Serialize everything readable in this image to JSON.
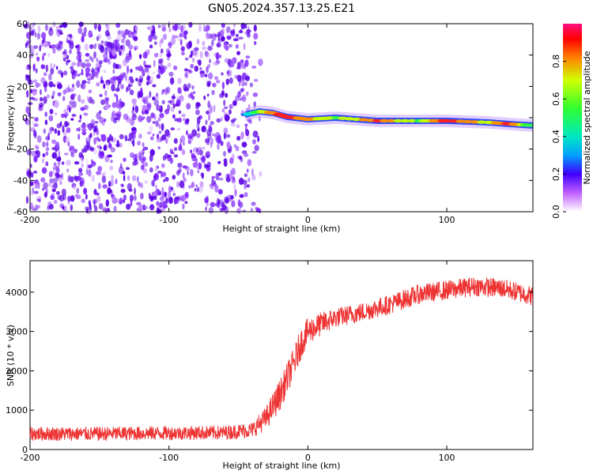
{
  "title": "GN05.2024.357.13.25.E21",
  "chart_data": [
    {
      "type": "heatmap",
      "xlabel": "Height of straight line (km)",
      "ylabel": "Frequency (Hz)",
      "xlim": [
        -200,
        162
      ],
      "ylim": [
        -60,
        60
      ],
      "xticks": [
        -200,
        -100,
        0,
        100
      ],
      "yticks": [
        -60,
        -40,
        -20,
        0,
        20,
        40,
        60
      ],
      "colorbar": {
        "label": "Normalized spectral amplitude",
        "range": [
          0,
          1
        ],
        "ticks": [
          "0.0",
          "0.2",
          "0.4",
          "0.6",
          "0.8"
        ],
        "tick_values": [
          0.0,
          0.2,
          0.4,
          0.6,
          0.8
        ]
      },
      "noise_region": {
        "x_start": -200,
        "x_end": -42,
        "freq_range": [
          -60,
          60
        ]
      },
      "signal_track": [
        {
          "x": -45,
          "freq": 2,
          "amp": 0.3
        },
        {
          "x": -35,
          "freq": 4,
          "amp": 0.6
        },
        {
          "x": -25,
          "freq": 3,
          "amp": 0.85
        },
        {
          "x": -15,
          "freq": 0.5,
          "amp": 0.95
        },
        {
          "x": 0,
          "freq": -1,
          "amp": 0.8
        },
        {
          "x": 20,
          "freq": 0,
          "amp": 0.6
        },
        {
          "x": 50,
          "freq": -2,
          "amp": 0.9
        },
        {
          "x": 80,
          "freq": -2,
          "amp": 0.6
        },
        {
          "x": 100,
          "freq": -2,
          "amp": 0.95
        },
        {
          "x": 130,
          "freq": -3,
          "amp": 0.7
        },
        {
          "x": 145,
          "freq": -4,
          "amp": 0.95
        },
        {
          "x": 162,
          "freq": -5,
          "amp": 0.4
        }
      ]
    },
    {
      "type": "line",
      "xlabel": "Height of straight line (km)",
      "ylabel": "SNR (10 * v/v)",
      "xlim": [
        -200,
        162
      ],
      "ylim": [
        0,
        4800
      ],
      "xticks": [
        -200,
        -100,
        0,
        100
      ],
      "yticks": [
        0,
        1000,
        2000,
        3000,
        4000
      ],
      "series": [
        {
          "color": "#ee3333",
          "x": [
            -200,
            -150,
            -100,
            -60,
            -40,
            -30,
            -20,
            -10,
            -5,
            0,
            10,
            20,
            40,
            60,
            80,
            100,
            120,
            140,
            162
          ],
          "y": [
            400,
            400,
            420,
            430,
            500,
            800,
            1400,
            2200,
            2700,
            3000,
            3200,
            3350,
            3500,
            3700,
            3950,
            4050,
            4150,
            4100,
            3900
          ],
          "noise_amplitude": [
            180,
            180,
            180,
            180,
            200,
            300,
            400,
            400,
            400,
            350,
            300,
            250,
            250,
            250,
            250,
            250,
            250,
            250,
            250
          ]
        }
      ]
    }
  ]
}
